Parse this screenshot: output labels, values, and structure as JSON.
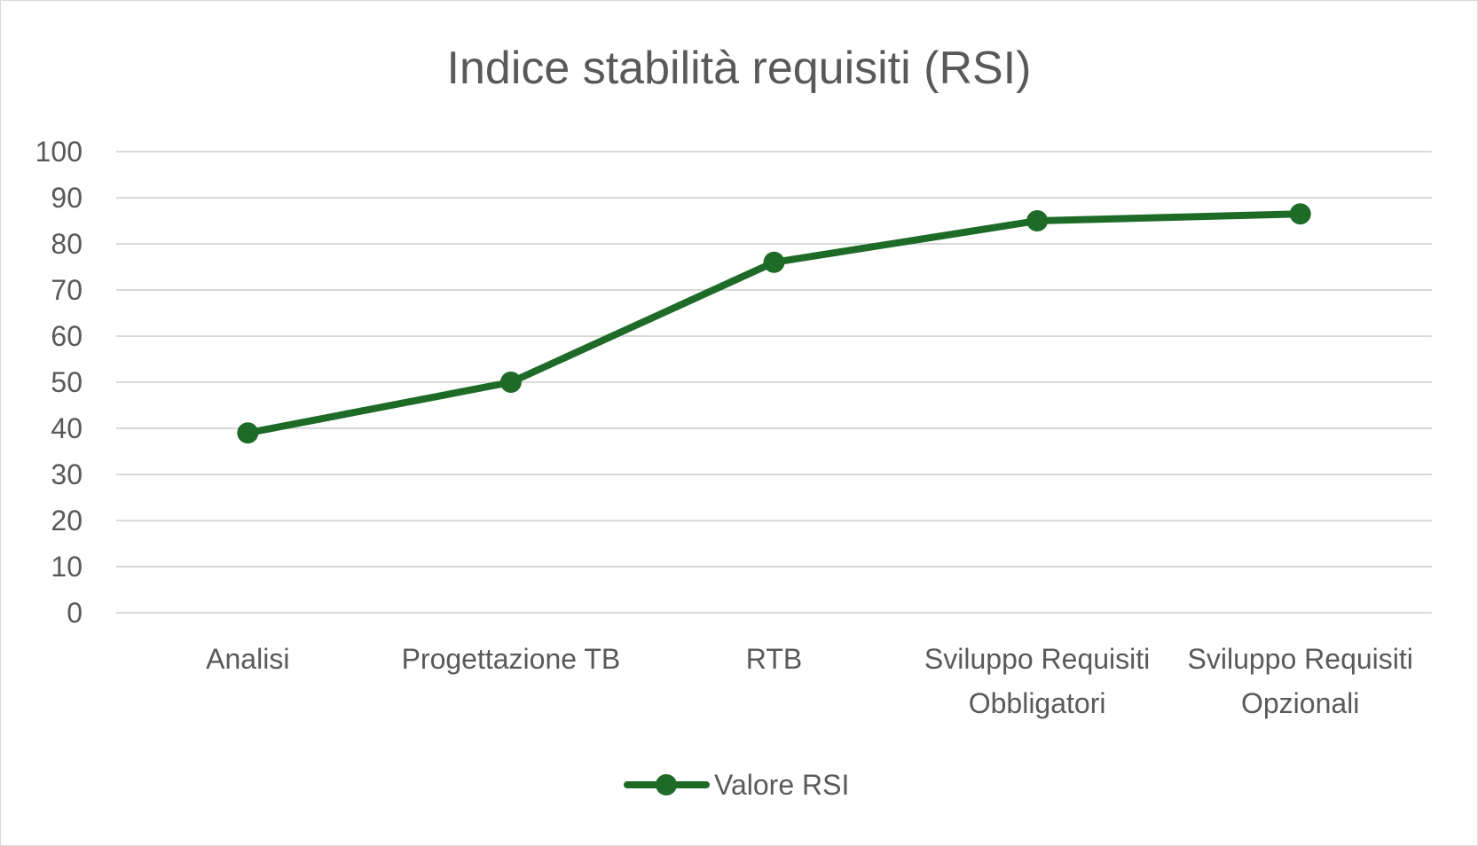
{
  "chart_data": {
    "type": "line",
    "title": "Indice stabilità requisiti (RSI)",
    "categories": [
      "Analisi",
      "Progettazione TB",
      "RTB",
      "Sviluppo Requisiti Obbligatori",
      "Sviluppo Requisiti Opzionali"
    ],
    "category_lines": [
      [
        "Analisi"
      ],
      [
        "Progettazione TB"
      ],
      [
        "RTB"
      ],
      [
        "Sviluppo Requisiti",
        "Obbligatori"
      ],
      [
        "Sviluppo Requisiti",
        "Opzionali"
      ]
    ],
    "series": [
      {
        "name": "Valore RSI",
        "values": [
          39,
          50,
          76,
          85,
          86.5
        ],
        "color": "#1e6b28"
      }
    ],
    "ylim": [
      0,
      100
    ],
    "yticks": [
      0,
      10,
      20,
      30,
      40,
      50,
      60,
      70,
      80,
      90,
      100
    ],
    "grid": true,
    "legend_position": "bottom"
  }
}
